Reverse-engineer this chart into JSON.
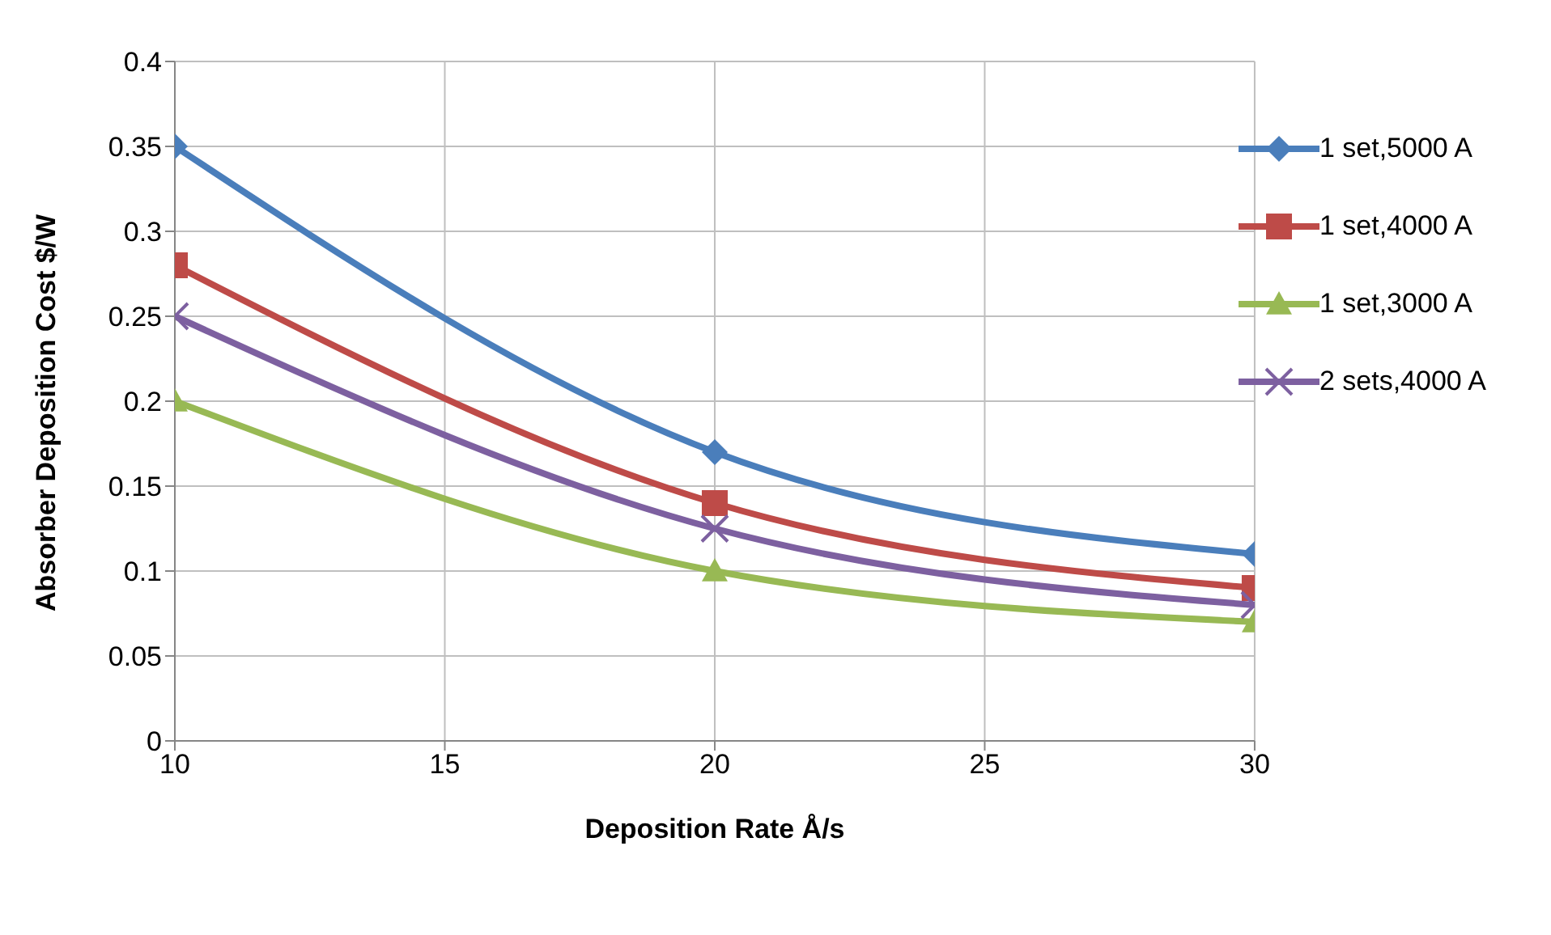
{
  "chart_data": {
    "type": "line",
    "xlabel": "Deposition Rate Å/s",
    "ylabel": "Absorber Deposition Cost $/W",
    "x": [
      10,
      20,
      30
    ],
    "series": [
      {
        "name": "1 set,5000 A",
        "color": "#4a7ebb",
        "values": [
          0.35,
          0.17,
          0.11
        ],
        "marker": "diamond"
      },
      {
        "name": "1 set,4000 A",
        "color": "#be4b48",
        "values": [
          0.28,
          0.14,
          0.09
        ],
        "marker": "square"
      },
      {
        "name": "1 set,3000 A",
        "color": "#98b954",
        "values": [
          0.2,
          0.1,
          0.07
        ],
        "marker": "triangle"
      },
      {
        "name": "2 sets,4000 A",
        "color": "#7d60a0",
        "values": [
          0.25,
          0.125,
          0.08
        ],
        "marker": "cross"
      }
    ],
    "xlim": [
      10,
      30
    ],
    "xticks": [
      10,
      15,
      20,
      25,
      30
    ],
    "ylim": [
      0,
      0.4
    ],
    "yticks": [
      0,
      0.05,
      0.1,
      0.15,
      0.2,
      0.25,
      0.3,
      0.35,
      0.4
    ],
    "grid": true,
    "legend": "top right",
    "line_style": "solid"
  }
}
